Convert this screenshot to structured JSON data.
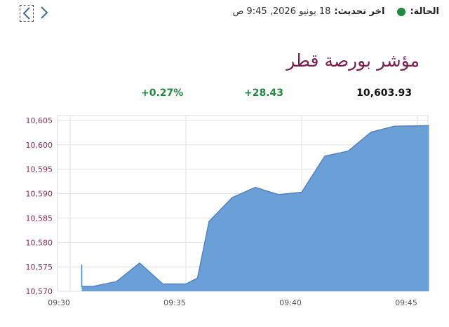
{
  "nav": {
    "prev_icon": "chevron-left-icon",
    "next_icon": "chevron-right-icon",
    "accent": "#3d6f9e"
  },
  "status": {
    "label": "الحالة:",
    "dot_color": "#1e8a3c",
    "updated_label": "اخر تحديث:",
    "updated_value": "18 يونيو 2026, 9:45 ص"
  },
  "title": "مؤشر بورصة قطر",
  "metrics": {
    "price": "10,603.93",
    "change": "+28.43",
    "change_pct": "+0.27%",
    "positive_color": "#1e8a3c"
  },
  "chart_data": {
    "type": "area",
    "fill_color": "#6a9fd8",
    "line_color": "#4a86c8",
    "grid": true,
    "x_ticks": [
      "09:30",
      "09:35",
      "09:40",
      "09:45"
    ],
    "y_ticks": [
      "10,570",
      "10,575",
      "10,580",
      "10,585",
      "10,590",
      "10,595",
      "10,600",
      "10,605"
    ],
    "ylim": [
      10570,
      10606
    ],
    "xlim_minutes": [
      9.5,
      9.77
    ],
    "series": [
      {
        "points": [
          [
            "09:30:30",
            10575.5
          ],
          [
            "09:30:30",
            10571
          ],
          [
            "09:31:00",
            10571
          ],
          [
            "09:32:00",
            10572
          ],
          [
            "09:33:00",
            10575.8
          ],
          [
            "09:34:00",
            10571.5
          ],
          [
            "09:35:00",
            10571.5
          ],
          [
            "09:35:30",
            10572.7
          ],
          [
            "09:36:00",
            10584.3
          ],
          [
            "09:37:00",
            10589.2
          ],
          [
            "09:38:00",
            10591.3
          ],
          [
            "09:39:00",
            10589.8
          ],
          [
            "09:40:00",
            10590.3
          ],
          [
            "09:41:00",
            10597.7
          ],
          [
            "09:42:00",
            10598.7
          ],
          [
            "09:43:00",
            10602.6
          ],
          [
            "09:44:00",
            10603.8
          ],
          [
            "09:45:30",
            10603.93
          ]
        ]
      }
    ]
  }
}
